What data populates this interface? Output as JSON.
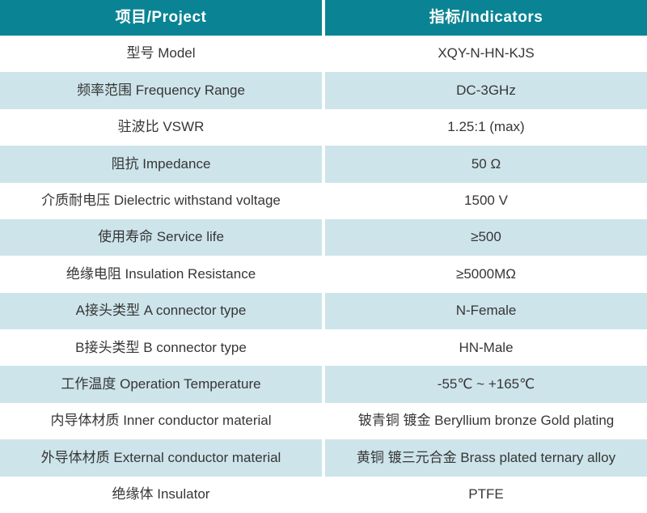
{
  "colors": {
    "header_bg": "#0a8494",
    "header_text": "#ffffff",
    "row_bg": "#ffffff",
    "row_alt_bg": "#cde4ea",
    "text": "#363636",
    "divider": "#ffffff"
  },
  "table": {
    "header": {
      "project": "项目/Project",
      "indicators": "指标/Indicators"
    },
    "rows": [
      {
        "project": "型号 Model",
        "indicator": "XQY-N-HN-KJS"
      },
      {
        "project": "频率范围 Frequency Range",
        "indicator": "DC-3GHz"
      },
      {
        "project": "驻波比 VSWR",
        "indicator": "1.25:1 (max)"
      },
      {
        "project": "阻抗 Impedance",
        "indicator": "50 Ω"
      },
      {
        "project": "介质耐电压 Dielectric withstand voltage",
        "indicator": "1500 V"
      },
      {
        "project": "使用寿命 Service life",
        "indicator": "≥500"
      },
      {
        "project": "绝缘电阻 Insulation Resistance",
        "indicator": "≥5000MΩ"
      },
      {
        "project": "A接头类型 A connector type",
        "indicator": "N-Female"
      },
      {
        "project": "B接头类型 B connector type",
        "indicator": "HN-Male"
      },
      {
        "project": "工作温度 Operation Temperature",
        "indicator": "-55℃ ~ +165℃"
      },
      {
        "project": "内导体材质 Inner conductor material",
        "indicator": "铍青铜 镀金 Beryllium bronze Gold plating"
      },
      {
        "project": "外导体材质 External conductor material",
        "indicator": "黄铜 镀三元合金 Brass plated ternary alloy"
      },
      {
        "project": "绝缘体 Insulator",
        "indicator": "PTFE"
      }
    ]
  }
}
